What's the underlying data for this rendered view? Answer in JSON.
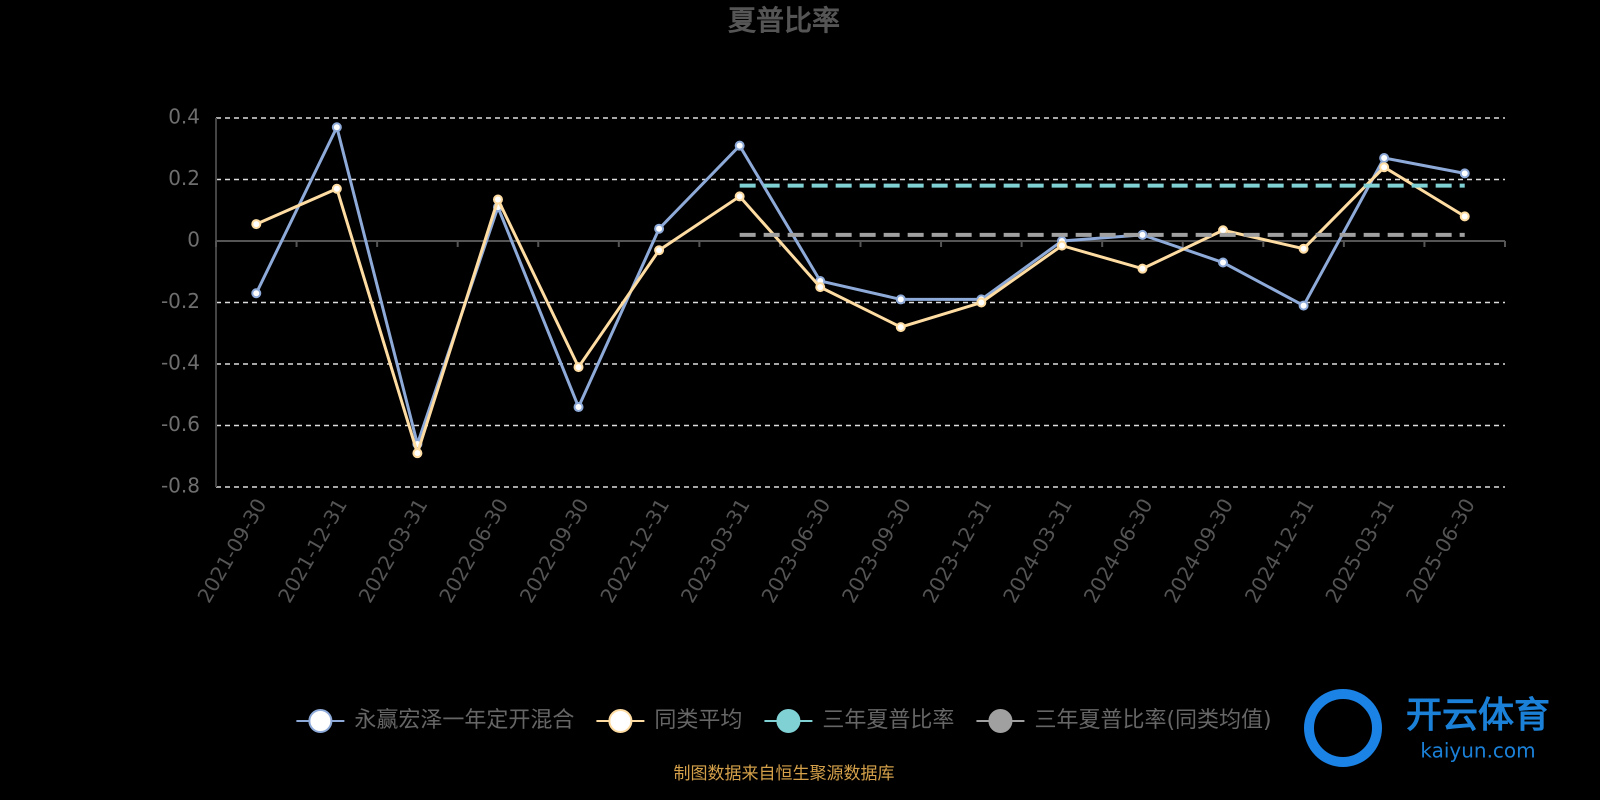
{
  "chart_data": {
    "type": "line",
    "title": "夏普比率",
    "categories": [
      "2021-09-30",
      "2021-12-31",
      "2022-03-31",
      "2022-06-30",
      "2022-09-30",
      "2022-12-31",
      "2023-03-31",
      "2023-06-30",
      "2023-09-30",
      "2023-12-31",
      "2024-03-31",
      "2024-06-30",
      "2024-09-30",
      "2024-12-31",
      "2025-03-31",
      "2025-06-30"
    ],
    "series": [
      {
        "name": "永赢宏泽一年定开混合",
        "color": "#8eaad9",
        "line_style": "solid",
        "marker": true,
        "values": [
          -0.17,
          0.37,
          -0.66,
          0.11,
          -0.54,
          0.04,
          0.31,
          -0.13,
          -0.19,
          -0.19,
          0.0,
          0.02,
          -0.07,
          -0.21,
          0.27,
          0.22
        ]
      },
      {
        "name": "同类平均",
        "color": "#fedca2",
        "line_style": "solid",
        "marker": true,
        "values": [
          0.055,
          0.17,
          -0.69,
          0.135,
          -0.41,
          -0.03,
          0.145,
          -0.15,
          -0.28,
          -0.2,
          -0.015,
          -0.09,
          0.035,
          -0.025,
          0.24,
          0.08
        ]
      },
      {
        "name": "三年夏普比率",
        "color": "#7fd1d4",
        "line_style": "dashed",
        "marker": false,
        "values": [
          null,
          null,
          null,
          null,
          null,
          null,
          0.18,
          0.18,
          0.18,
          0.18,
          0.18,
          0.18,
          0.18,
          0.18,
          0.18,
          0.18
        ]
      },
      {
        "name": "三年夏普比率(同类均值)",
        "color": "#a0a0a0",
        "line_style": "dashed",
        "marker": false,
        "values": [
          null,
          null,
          null,
          null,
          null,
          null,
          0.02,
          0.02,
          0.02,
          0.02,
          0.02,
          0.02,
          0.02,
          0.02,
          0.02,
          0.02
        ]
      }
    ],
    "ylim": [
      -0.8,
      0.4
    ],
    "yticks": [
      -0.8,
      -0.6,
      -0.4,
      -0.2,
      0,
      0.2,
      0.4
    ],
    "grid": true
  },
  "source": "制图数据来自恒生聚源数据库",
  "watermark": {
    "brand": "开云体育",
    "site": "kaiyun.com"
  }
}
